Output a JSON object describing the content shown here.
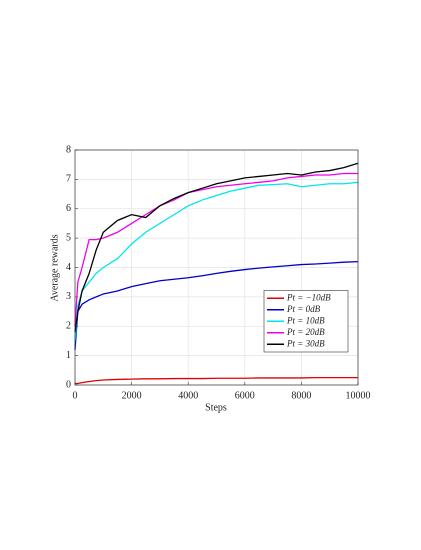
{
  "chart_data": {
    "type": "line",
    "x_label": "Steps",
    "y_label": "Average rewards",
    "x": [
      0,
      100,
      250,
      500,
      750,
      1000,
      1500,
      2000,
      2500,
      3000,
      3500,
      4000,
      4500,
      5000,
      5500,
      6000,
      6500,
      7000,
      7500,
      8000,
      8500,
      9000,
      9500,
      10000
    ],
    "series": [
      {
        "name": "Pt = −10dB",
        "color": "#e00000",
        "values": [
          0.05,
          0.05,
          0.08,
          0.12,
          0.15,
          0.17,
          0.19,
          0.2,
          0.21,
          0.21,
          0.22,
          0.22,
          0.22,
          0.23,
          0.23,
          0.23,
          0.24,
          0.24,
          0.24,
          0.24,
          0.25,
          0.25,
          0.25,
          0.25
        ]
      },
      {
        "name": "Pt = 0dB",
        "color": "#0000cc",
        "values": [
          1.2,
          2.5,
          2.75,
          2.9,
          3.0,
          3.1,
          3.2,
          3.35,
          3.45,
          3.55,
          3.6,
          3.65,
          3.72,
          3.8,
          3.87,
          3.93,
          3.98,
          4.02,
          4.06,
          4.1,
          4.12,
          4.15,
          4.18,
          4.2
        ]
      },
      {
        "name": "Pt = 10dB",
        "color": "#00e5ee",
        "values": [
          1.5,
          2.7,
          3.2,
          3.5,
          3.8,
          4.0,
          4.3,
          4.8,
          5.2,
          5.5,
          5.8,
          6.1,
          6.3,
          6.45,
          6.6,
          6.7,
          6.8,
          6.82,
          6.85,
          6.75,
          6.8,
          6.85,
          6.85,
          6.9
        ]
      },
      {
        "name": "Pt = 20dB",
        "color": "#ee00ee",
        "values": [
          2.0,
          3.5,
          4.0,
          4.95,
          4.95,
          5.0,
          5.2,
          5.5,
          5.8,
          6.1,
          6.3,
          6.55,
          6.65,
          6.75,
          6.8,
          6.85,
          6.9,
          6.95,
          7.05,
          7.1,
          7.15,
          7.15,
          7.2,
          7.2
        ]
      },
      {
        "name": "Pt = 30dB",
        "color": "#000000",
        "values": [
          1.8,
          2.5,
          3.2,
          3.8,
          4.6,
          5.2,
          5.6,
          5.8,
          5.7,
          6.1,
          6.35,
          6.55,
          6.7,
          6.85,
          6.95,
          7.05,
          7.1,
          7.15,
          7.2,
          7.15,
          7.25,
          7.3,
          7.4,
          7.55
        ]
      }
    ],
    "xlim": [
      0,
      10000
    ],
    "xticks": [
      0,
      2000,
      4000,
      6000,
      8000,
      10000
    ],
    "ylim": [
      0,
      8
    ],
    "yticks": [
      0,
      1,
      2,
      3,
      4,
      5,
      6,
      7,
      8
    ],
    "grid": true,
    "legend": "lower right"
  }
}
